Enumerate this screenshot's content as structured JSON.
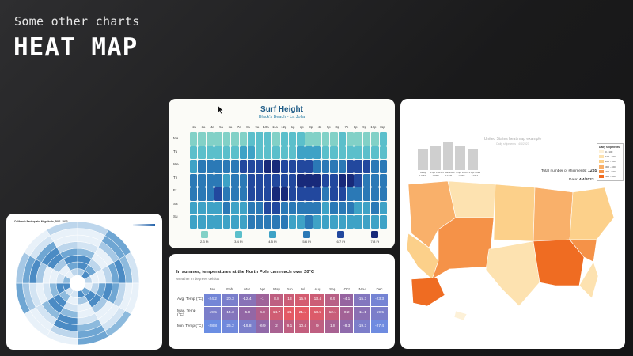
{
  "header": {
    "kicker": "Some other charts",
    "title": "HEAT MAP"
  },
  "polar_card": {
    "title": "California Earthquake Magnitude, 2001–2012"
  },
  "surf_card": {
    "title": "Surf Height",
    "subtitle": "Black's Beach - La Jolla",
    "hours": [
      "2a",
      "3a",
      "4a",
      "5a",
      "6a",
      "7a",
      "8a",
      "9a",
      "10a",
      "11a",
      "12p",
      "1p",
      "2p",
      "3p",
      "4p",
      "5p",
      "6p",
      "7p",
      "8p",
      "9p",
      "10p",
      "11p"
    ],
    "days": [
      "Mo",
      "Tu",
      "We",
      "Th",
      "Fr",
      "Sa",
      "Su"
    ],
    "legend": [
      "2-3 Ft",
      "3-4 Ft",
      "4-5 Ft",
      "5-6 Ft",
      "6-7 Ft",
      "7-8 Ft"
    ],
    "colors": [
      "#82d1c7",
      "#5bbfcb",
      "#3ea2c6",
      "#2b79b6",
      "#22489e",
      "#182a7a"
    ]
  },
  "table_card": {
    "title": "In summer, temperatures at the North Pole can reach over 20°C",
    "subtitle": "Weather in degrees celsius",
    "months": [
      "Jan",
      "Feb",
      "Mar",
      "Apr",
      "May",
      "Jun",
      "Jul",
      "Aug",
      "Sep",
      "Oct",
      "Nov",
      "Dec"
    ],
    "rows": [
      {
        "label": "Avg. Temp (°C)",
        "values": [
          "-24.2",
          "-20.3",
          "-12.4",
          "-1",
          "8.8",
          "13",
          "15.9",
          "13.4",
          "6.9",
          "-4.1",
          "-15.3",
          "-23.3"
        ]
      },
      {
        "label": "Max. Temp (°C)",
        "values": [
          "-19.5",
          "-14.3",
          "-5.9",
          "4.9",
          "14.7",
          "21",
          "21.1",
          "18.5",
          "12.1",
          "0.2",
          "-11.1",
          "-19.5"
        ]
      },
      {
        "label": "Min. Temp (°C)",
        "values": [
          "-28.8",
          "-26.2",
          "-19.8",
          "-6.9",
          "2",
          "9.1",
          "10.4",
          "9",
          "1.8",
          "-8.3",
          "-19.3",
          "-27.4"
        ]
      }
    ]
  },
  "map_card": {
    "title": "United States heat map example",
    "subtitle": "Daily shipments · 4/4/2023",
    "total_label": "Total number of shipments:",
    "total_value": "12357",
    "date_label": "Date:",
    "date_value": "4/4/2023",
    "legend_title": "Daily shipments",
    "legend": [
      "0 - 100",
      "100 - 200",
      "200 - 300",
      "300 - 400",
      "400 - 500",
      "500 - 600"
    ],
    "legend_colors": [
      "#fdf1d8",
      "#fde2b0",
      "#fcd08a",
      "#f9b06a",
      "#f59248",
      "#ef6c22"
    ],
    "bar_labels": [
      "Today 12357",
      "1 Apr 2023 12056",
      "2 Mar 2023 12426",
      "3 Apr 2023 12056",
      "4 Apr 2023 12357"
    ]
  }
}
